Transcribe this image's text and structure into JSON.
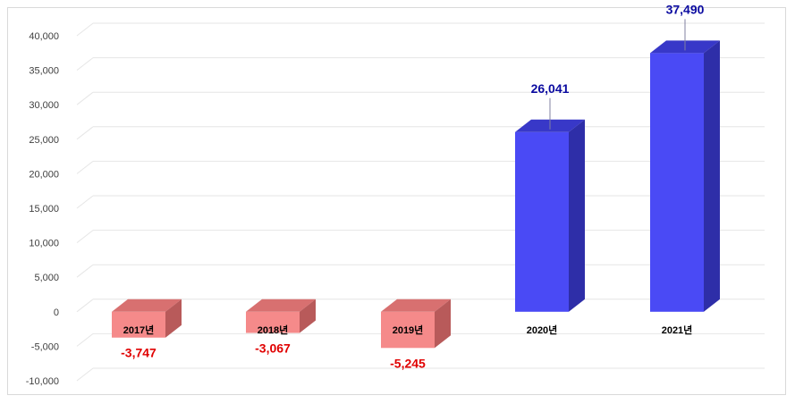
{
  "chart_data": {
    "type": "bar",
    "title": "",
    "xlabel": "",
    "ylabel": "",
    "categories": [
      "2017년",
      "2018년",
      "2019년",
      "2020년",
      "2021년"
    ],
    "values": [
      -3747,
      -3067,
      -5245,
      26041,
      37490
    ],
    "value_labels": [
      "-3,747",
      "-3,067",
      "-5,245",
      "26,041",
      "37,490"
    ],
    "ylim": [
      -10000,
      40000
    ],
    "yticks": [
      40000,
      35000,
      30000,
      25000,
      20000,
      15000,
      10000,
      5000,
      0,
      -5000,
      -10000
    ],
    "ytick_labels": [
      "40,000",
      "35,000",
      "30,000",
      "25,000",
      "20,000",
      "15,000",
      "10,000",
      "5,000",
      "0",
      "-5,000",
      "-10,000"
    ],
    "grid": true,
    "style": "3d-column",
    "colors": {
      "positive": "#4a4af5",
      "positive_top": "#3838c8",
      "positive_side": "#2e2ea8",
      "negative": "#f58a8a",
      "negative_top": "#d87070",
      "negative_side": "#b85a5a",
      "positive_label": "#0a0aa0",
      "negative_label": "#e00000",
      "grid": "#e6e6e6"
    }
  }
}
